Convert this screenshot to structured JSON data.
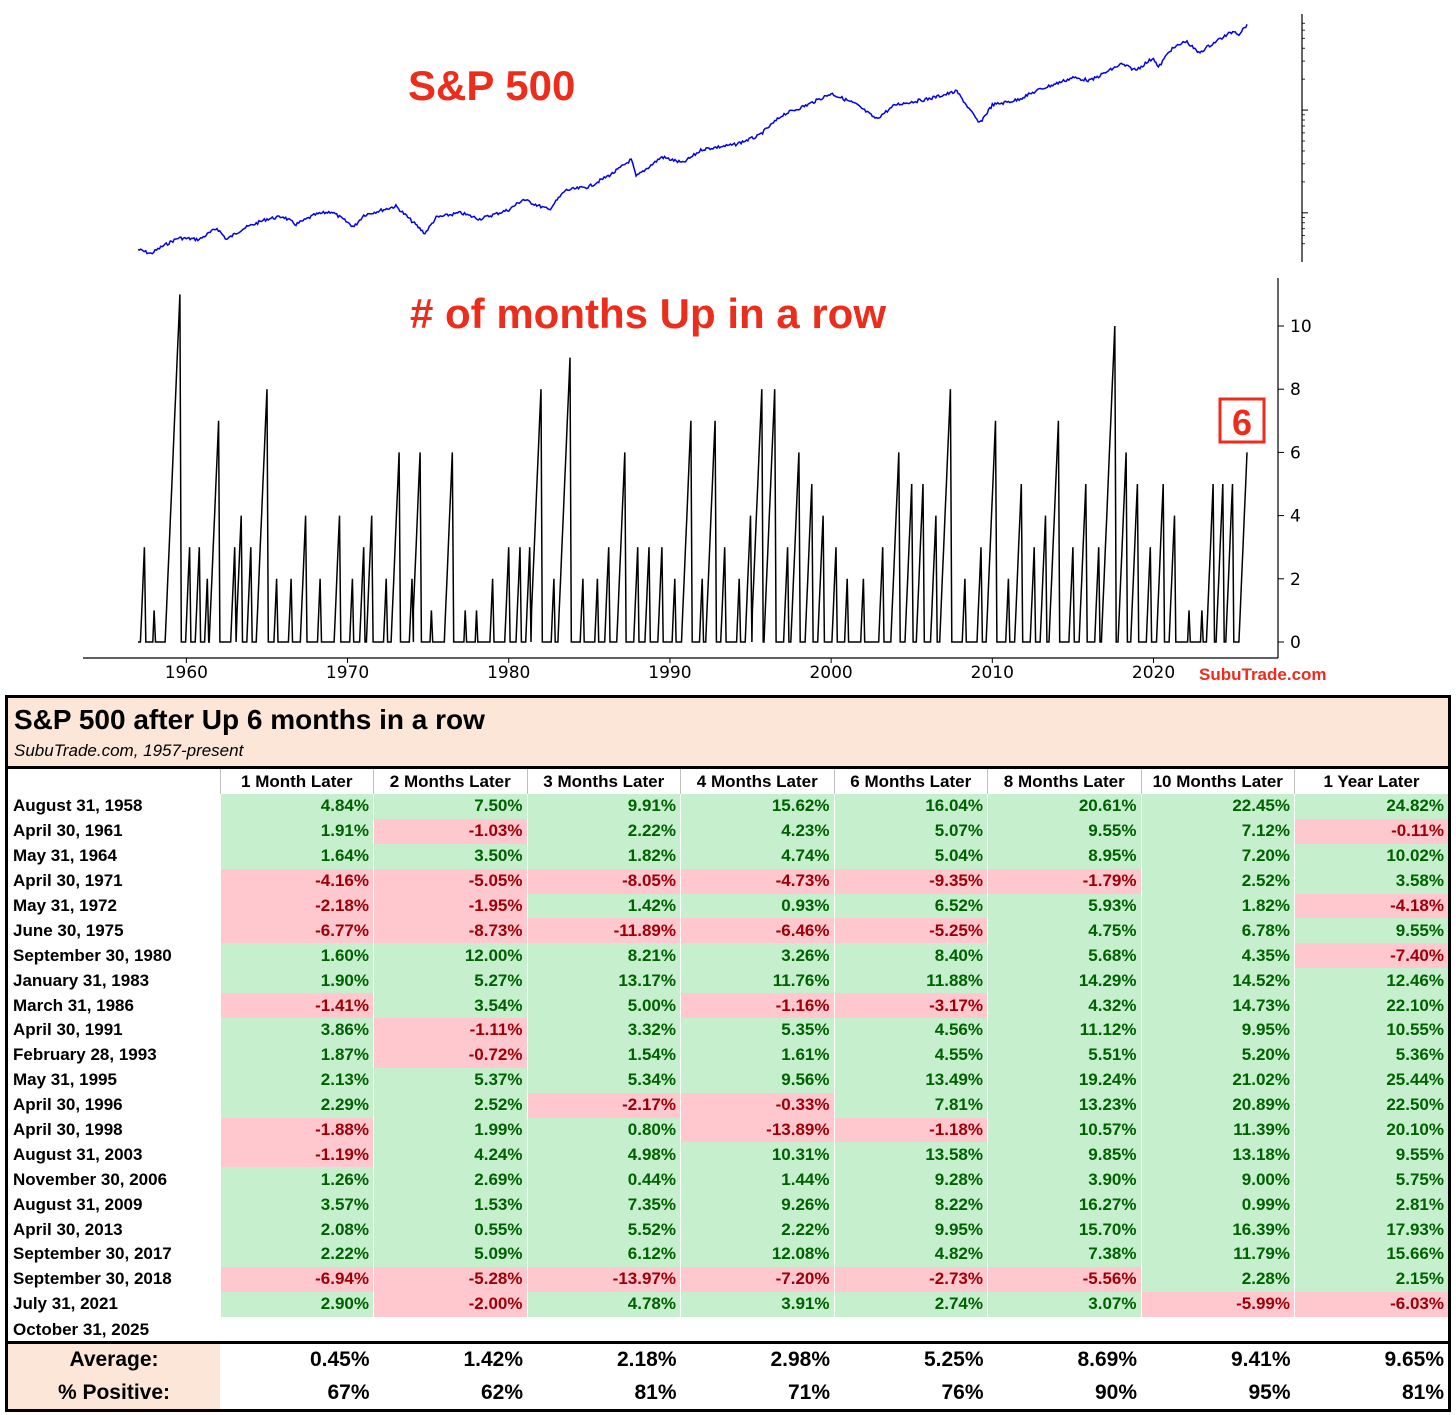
{
  "chart_data": [
    {
      "type": "line",
      "title": "S&P 500",
      "y_scale": "log",
      "x_range": [
        1957,
        2025.8
      ],
      "series": [
        {
          "color": "#0000ee",
          "points": [
            [
              1957.0,
              44
            ],
            [
              1957.8,
              40
            ],
            [
              1958.5,
              47
            ],
            [
              1959.5,
              57
            ],
            [
              1960.8,
              55
            ],
            [
              1961.9,
              71
            ],
            [
              1962.5,
              55
            ],
            [
              1963.5,
              70
            ],
            [
              1965.0,
              87
            ],
            [
              1966.0,
              92
            ],
            [
              1966.8,
              77
            ],
            [
              1968.0,
              96
            ],
            [
              1969.0,
              103
            ],
            [
              1970.4,
              73
            ],
            [
              1971.0,
              95
            ],
            [
              1973.0,
              116
            ],
            [
              1974.8,
              63
            ],
            [
              1975.5,
              90
            ],
            [
              1977.0,
              100
            ],
            [
              1978.2,
              87
            ],
            [
              1980.0,
              107
            ],
            [
              1980.9,
              135
            ],
            [
              1982.5,
              107
            ],
            [
              1983.5,
              165
            ],
            [
              1985.0,
              180
            ],
            [
              1986.5,
              245
            ],
            [
              1987.6,
              330
            ],
            [
              1987.9,
              225
            ],
            [
              1989.5,
              350
            ],
            [
              1990.8,
              305
            ],
            [
              1992.0,
              415
            ],
            [
              1994.0,
              460
            ],
            [
              1995.5,
              560
            ],
            [
              1997.0,
              900
            ],
            [
              1998.5,
              1120
            ],
            [
              2000.0,
              1450
            ],
            [
              2001.5,
              1150
            ],
            [
              2002.8,
              820
            ],
            [
              2004.0,
              1130
            ],
            [
              2006.0,
              1280
            ],
            [
              2007.8,
              1520
            ],
            [
              2009.2,
              740
            ],
            [
              2010.0,
              1120
            ],
            [
              2011.5,
              1250
            ],
            [
              2013.0,
              1600
            ],
            [
              2015.0,
              2070
            ],
            [
              2016.1,
              1940
            ],
            [
              2018.0,
              2800
            ],
            [
              2018.9,
              2450
            ],
            [
              2020.0,
              3230
            ],
            [
              2020.3,
              2580
            ],
            [
              2021.0,
              3800
            ],
            [
              2022.0,
              4700
            ],
            [
              2022.8,
              3600
            ],
            [
              2024.0,
              4800
            ],
            [
              2025.0,
              5900
            ],
            [
              2025.3,
              5500
            ],
            [
              2025.8,
              6840
            ]
          ]
        }
      ]
    },
    {
      "type": "line",
      "title": "# of months Up in a row",
      "x_range": [
        1957,
        2025.8
      ],
      "x_ticks": [
        "1960",
        "1970",
        "1980",
        "1990",
        "2000",
        "2010",
        "2020"
      ],
      "ylim": [
        0,
        11
      ],
      "y_ticks": [
        "0",
        "2",
        "4",
        "6",
        "8",
        "10"
      ],
      "callout": "6",
      "series": [
        {
          "color": "#000000",
          "peaks": [
            [
              1957.4,
              3
            ],
            [
              1958.0,
              1
            ],
            [
              1959.6,
              11
            ],
            [
              1960.2,
              3
            ],
            [
              1960.8,
              3
            ],
            [
              1961.3,
              2
            ],
            [
              1962.0,
              7
            ],
            [
              1963.0,
              3
            ],
            [
              1963.4,
              4
            ],
            [
              1964.0,
              3
            ],
            [
              1965.0,
              8
            ],
            [
              1965.6,
              2
            ],
            [
              1966.5,
              2
            ],
            [
              1967.4,
              4
            ],
            [
              1968.3,
              2
            ],
            [
              1969.5,
              4
            ],
            [
              1970.3,
              2
            ],
            [
              1971.0,
              3
            ],
            [
              1971.5,
              4
            ],
            [
              1972.4,
              2
            ],
            [
              1973.2,
              6
            ],
            [
              1974.0,
              2
            ],
            [
              1974.5,
              6
            ],
            [
              1975.2,
              1
            ],
            [
              1976.5,
              6
            ],
            [
              1977.3,
              1
            ],
            [
              1978.0,
              1
            ],
            [
              1979.0,
              2
            ],
            [
              1980.0,
              3
            ],
            [
              1980.7,
              3
            ],
            [
              1981.3,
              3
            ],
            [
              1982.0,
              8
            ],
            [
              1982.8,
              2
            ],
            [
              1983.8,
              9
            ],
            [
              1984.6,
              2
            ],
            [
              1985.5,
              2
            ],
            [
              1986.2,
              3
            ],
            [
              1987.2,
              6
            ],
            [
              1988.0,
              3
            ],
            [
              1988.7,
              3
            ],
            [
              1989.5,
              3
            ],
            [
              1990.3,
              2
            ],
            [
              1991.3,
              7
            ],
            [
              1992.0,
              2
            ],
            [
              1992.8,
              7
            ],
            [
              1993.4,
              3
            ],
            [
              1994.3,
              2
            ],
            [
              1995.0,
              4
            ],
            [
              1995.7,
              8
            ],
            [
              1996.5,
              8
            ],
            [
              1997.3,
              3
            ],
            [
              1998.0,
              6
            ],
            [
              1998.8,
              5
            ],
            [
              1999.5,
              4
            ],
            [
              2000.3,
              3
            ],
            [
              2001.0,
              2
            ],
            [
              2002.0,
              2
            ],
            [
              2003.2,
              3
            ],
            [
              2004.2,
              6
            ],
            [
              2005.0,
              5
            ],
            [
              2005.7,
              5
            ],
            [
              2006.5,
              4
            ],
            [
              2007.4,
              8
            ],
            [
              2008.3,
              2
            ],
            [
              2009.3,
              3
            ],
            [
              2010.2,
              7
            ],
            [
              2011.0,
              2
            ],
            [
              2011.8,
              5
            ],
            [
              2012.6,
              3
            ],
            [
              2013.3,
              4
            ],
            [
              2014.1,
              7
            ],
            [
              2015.0,
              3
            ],
            [
              2015.8,
              5
            ],
            [
              2016.6,
              3
            ],
            [
              2017.6,
              10
            ],
            [
              2018.3,
              6
            ],
            [
              2019.0,
              5
            ],
            [
              2019.8,
              3
            ],
            [
              2020.6,
              5
            ],
            [
              2021.3,
              4
            ],
            [
              2022.2,
              1
            ],
            [
              2023.0,
              1
            ],
            [
              2023.7,
              5
            ],
            [
              2024.3,
              5
            ],
            [
              2024.9,
              5
            ],
            [
              2025.8,
              6
            ]
          ]
        }
      ]
    }
  ],
  "watermark": "SubuTrade.com",
  "table": {
    "title": "S&P 500 after Up 6 months in a row",
    "subtitle": "SubuTrade.com, 1957-present",
    "columns": [
      "1 Month Later",
      "2 Months Later",
      "3 Months Later",
      "4 Months Later",
      "6 Months Later",
      "8 Months Later",
      "10 Months Later",
      "1 Year Later"
    ],
    "rows": [
      {
        "label": "August 31, 1958",
        "values": [
          "4.84%",
          "7.50%",
          "9.91%",
          "15.62%",
          "16.04%",
          "20.61%",
          "22.45%",
          "24.82%"
        ]
      },
      {
        "label": "April 30, 1961",
        "values": [
          "1.91%",
          "-1.03%",
          "2.22%",
          "4.23%",
          "5.07%",
          "9.55%",
          "7.12%",
          "-0.11%"
        ]
      },
      {
        "label": "May 31, 1964",
        "values": [
          "1.64%",
          "3.50%",
          "1.82%",
          "4.74%",
          "5.04%",
          "8.95%",
          "7.20%",
          "10.02%"
        ]
      },
      {
        "label": "April 30, 1971",
        "values": [
          "-4.16%",
          "-5.05%",
          "-8.05%",
          "-4.73%",
          "-9.35%",
          "-1.79%",
          "2.52%",
          "3.58%"
        ]
      },
      {
        "label": "May 31, 1972",
        "values": [
          "-2.18%",
          "-1.95%",
          "1.42%",
          "0.93%",
          "6.52%",
          "5.93%",
          "1.82%",
          "-4.18%"
        ]
      },
      {
        "label": "June 30, 1975",
        "values": [
          "-6.77%",
          "-8.73%",
          "-11.89%",
          "-6.46%",
          "-5.25%",
          "4.75%",
          "6.78%",
          "9.55%"
        ]
      },
      {
        "label": "September 30, 1980",
        "values": [
          "1.60%",
          "12.00%",
          "8.21%",
          "3.26%",
          "8.40%",
          "5.68%",
          "4.35%",
          "-7.40%"
        ]
      },
      {
        "label": "January 31, 1983",
        "values": [
          "1.90%",
          "5.27%",
          "13.17%",
          "11.76%",
          "11.88%",
          "14.29%",
          "14.52%",
          "12.46%"
        ]
      },
      {
        "label": "March 31, 1986",
        "values": [
          "-1.41%",
          "3.54%",
          "5.00%",
          "-1.16%",
          "-3.17%",
          "4.32%",
          "14.73%",
          "22.10%"
        ]
      },
      {
        "label": "April 30, 1991",
        "values": [
          "3.86%",
          "-1.11%",
          "3.32%",
          "5.35%",
          "4.56%",
          "11.12%",
          "9.95%",
          "10.55%"
        ]
      },
      {
        "label": "February 28, 1993",
        "values": [
          "1.87%",
          "-0.72%",
          "1.54%",
          "1.61%",
          "4.55%",
          "5.51%",
          "5.20%",
          "5.36%"
        ]
      },
      {
        "label": "May 31, 1995",
        "values": [
          "2.13%",
          "5.37%",
          "5.34%",
          "9.56%",
          "13.49%",
          "19.24%",
          "21.02%",
          "25.44%"
        ]
      },
      {
        "label": "April 30, 1996",
        "values": [
          "2.29%",
          "2.52%",
          "-2.17%",
          "-0.33%",
          "7.81%",
          "13.23%",
          "20.89%",
          "22.50%"
        ]
      },
      {
        "label": "April 30, 1998",
        "values": [
          "-1.88%",
          "1.99%",
          "0.80%",
          "-13.89%",
          "-1.18%",
          "10.57%",
          "11.39%",
          "20.10%"
        ]
      },
      {
        "label": "August 31, 2003",
        "values": [
          "-1.19%",
          "4.24%",
          "4.98%",
          "10.31%",
          "13.58%",
          "9.85%",
          "13.18%",
          "9.55%"
        ]
      },
      {
        "label": "November 30, 2006",
        "values": [
          "1.26%",
          "2.69%",
          "0.44%",
          "1.44%",
          "9.28%",
          "3.90%",
          "9.00%",
          "5.75%"
        ]
      },
      {
        "label": "August 31, 2009",
        "values": [
          "3.57%",
          "1.53%",
          "7.35%",
          "9.26%",
          "8.22%",
          "16.27%",
          "0.99%",
          "2.81%"
        ]
      },
      {
        "label": "April 30, 2013",
        "values": [
          "2.08%",
          "0.55%",
          "5.52%",
          "2.22%",
          "9.95%",
          "15.70%",
          "16.39%",
          "17.93%"
        ]
      },
      {
        "label": "September 30, 2017",
        "values": [
          "2.22%",
          "5.09%",
          "6.12%",
          "12.08%",
          "4.82%",
          "7.38%",
          "11.79%",
          "15.66%"
        ]
      },
      {
        "label": "September 30, 2018",
        "values": [
          "-6.94%",
          "-5.28%",
          "-13.97%",
          "-7.20%",
          "-2.73%",
          "-5.56%",
          "2.28%",
          "2.15%"
        ]
      },
      {
        "label": "July 31, 2021",
        "values": [
          "2.90%",
          "-2.00%",
          "4.78%",
          "3.91%",
          "2.74%",
          "3.07%",
          "-5.99%",
          "-6.03%"
        ]
      },
      {
        "label": "October 31, 2025",
        "values": [
          "",
          "",
          "",
          "",
          "",
          "",
          "",
          ""
        ]
      }
    ],
    "summary": [
      {
        "label": "Average:",
        "values": [
          "0.45%",
          "1.42%",
          "2.18%",
          "2.98%",
          "5.25%",
          "8.69%",
          "9.41%",
          "9.65%"
        ]
      },
      {
        "label": "% Positive:",
        "values": [
          "67%",
          "62%",
          "81%",
          "71%",
          "76%",
          "90%",
          "95%",
          "81%"
        ]
      }
    ],
    "colors": {
      "pos_bg": "#c6efce",
      "pos_text": "#006100",
      "neg_bg": "#ffc7ce",
      "neg_text": "#9c0006",
      "header_bg": "#fbe6d8"
    }
  }
}
